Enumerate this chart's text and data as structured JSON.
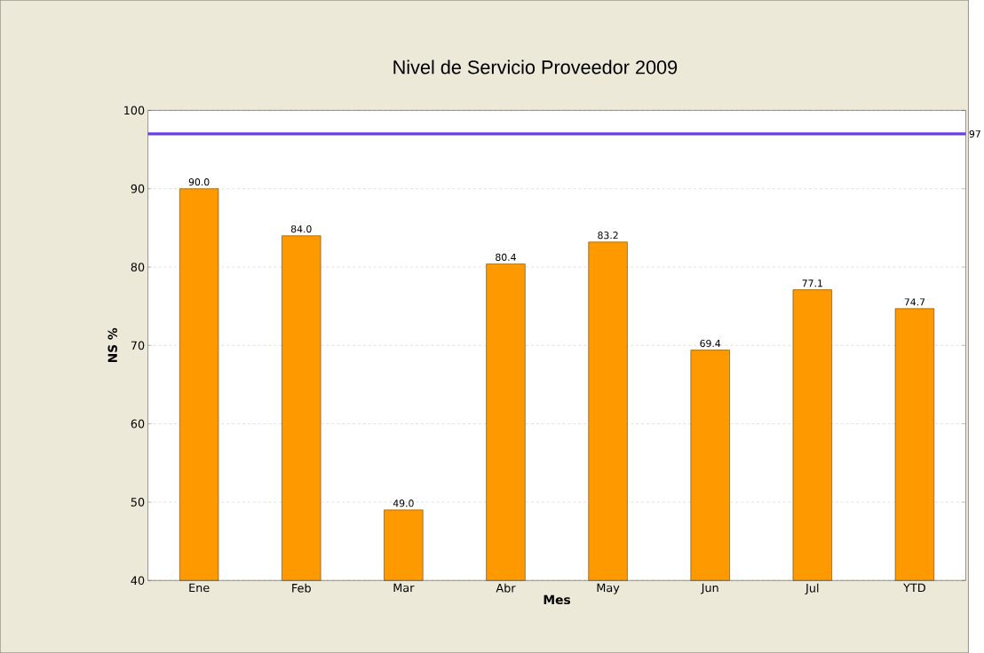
{
  "chart_data": {
    "type": "bar",
    "title": "Nivel de Servicio Proveedor 2009",
    "xlabel": "Mes",
    "ylabel": "NS %",
    "categories": [
      "Ene",
      "Feb",
      "Mar",
      "Abr",
      "May",
      "Jun",
      "Jul",
      "YTD"
    ],
    "values": [
      90.0,
      84.0,
      49.0,
      80.4,
      83.2,
      69.4,
      77.1,
      74.7
    ],
    "value_labels": [
      "90.0",
      "84.0",
      "49.0",
      "80.4",
      "83.2",
      "69.4",
      "77.1",
      "74.7"
    ],
    "color": "#ff9900",
    "ylim": [
      40,
      100
    ],
    "yticks": [
      40,
      50,
      60,
      70,
      80,
      90,
      100
    ],
    "grid": "y",
    "ref_lines": [
      {
        "axis": "y",
        "value": 97,
        "label": "97",
        "color": "#6a3cf0"
      }
    ]
  }
}
